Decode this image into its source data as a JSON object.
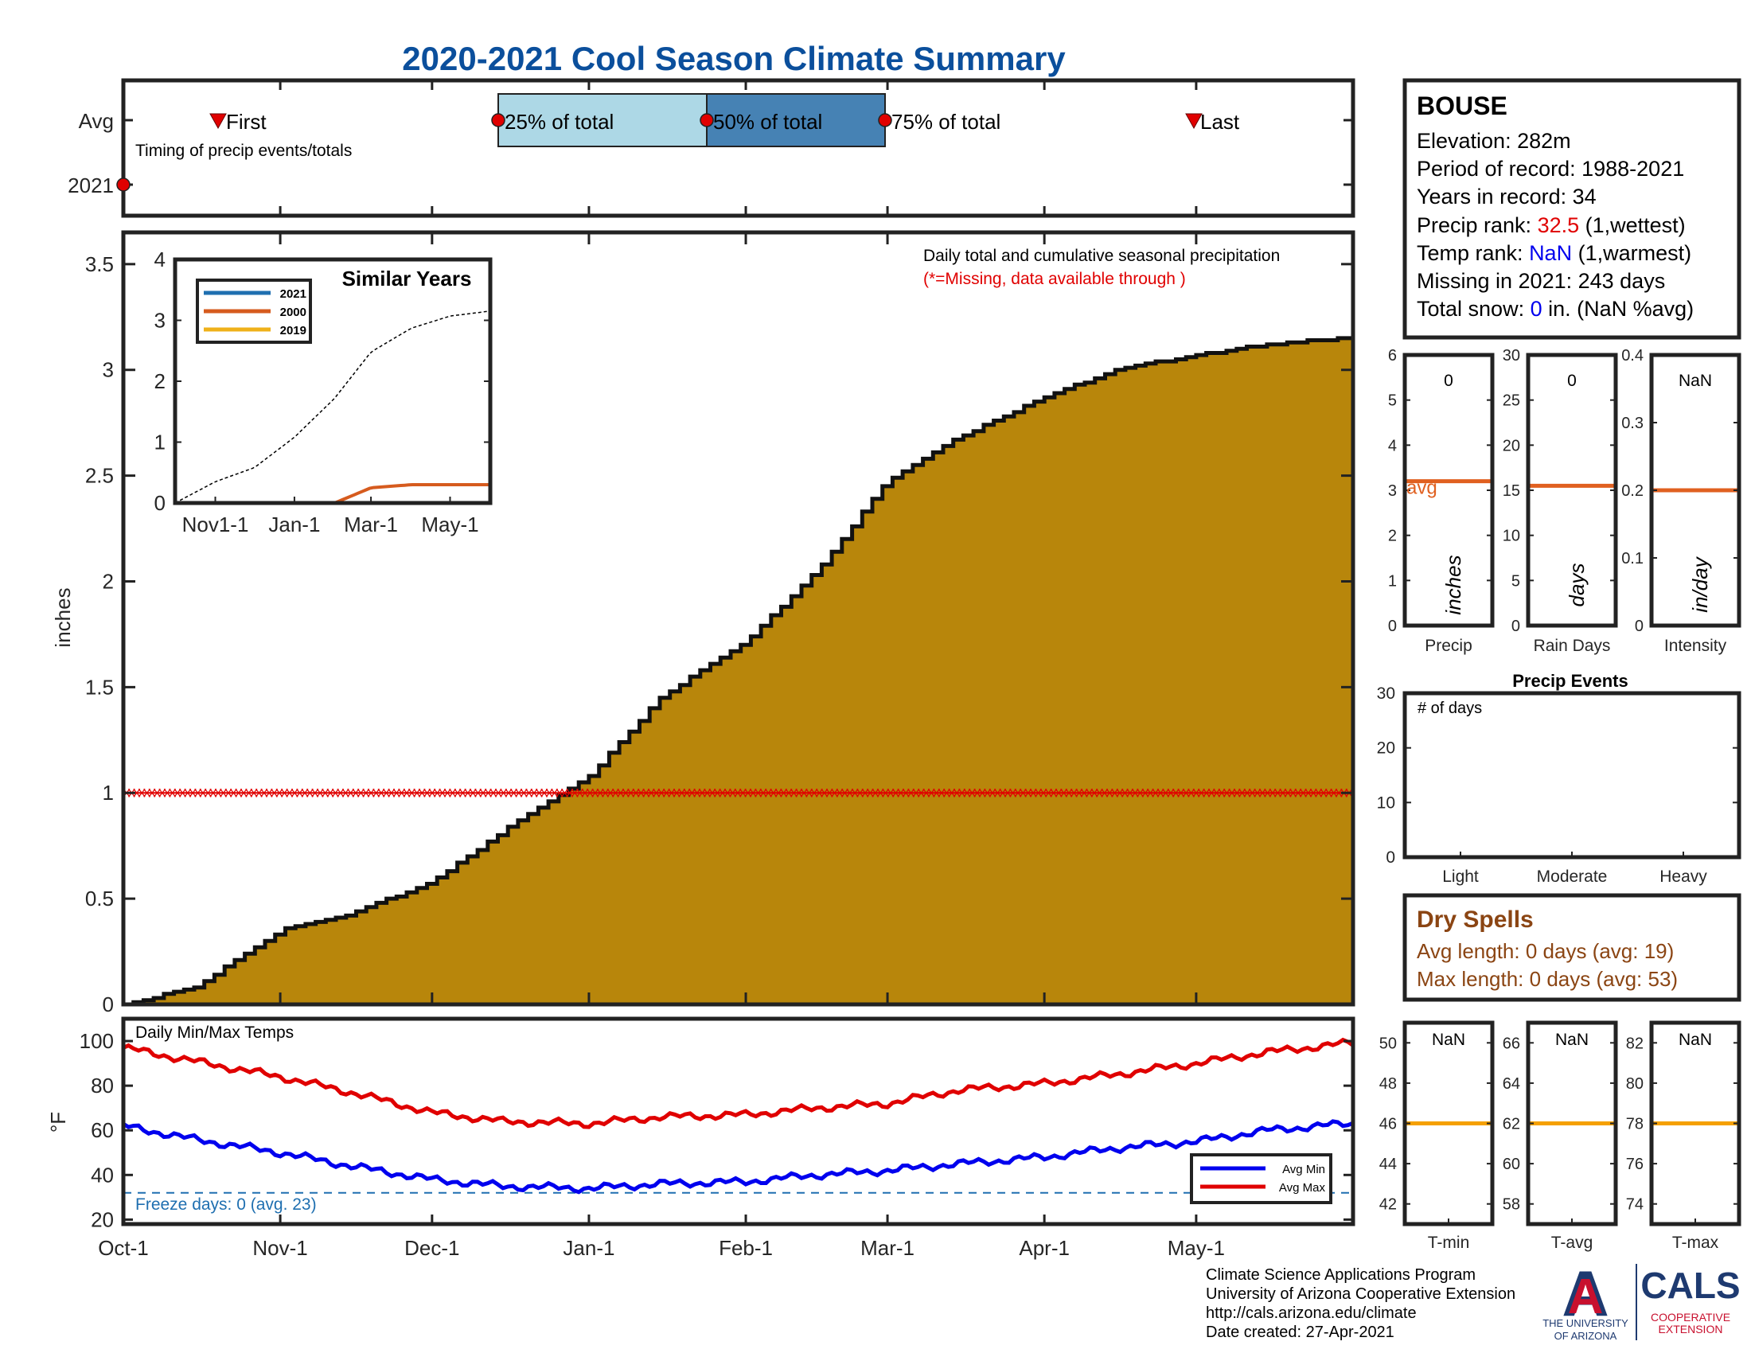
{
  "title": "2020-2021 Cool Season Climate Summary",
  "timing": {
    "ylabels": [
      "Avg",
      "2021"
    ],
    "first_label": "First",
    "last_label": "Last",
    "caption": "Timing of precip events/totals",
    "q25_label": "25% of total",
    "q50_label": "50% of total",
    "q75_label": "75% of total",
    "first_date": "Nov-1",
    "q25_date": "Dec-16",
    "q50_date": "Jan-25",
    "q75_date": "Mar-1",
    "last_date": "May-1",
    "year2021_marker_date": "Oct-1"
  },
  "station": {
    "name": "BOUSE",
    "elevation_label": "Elevation: 282m",
    "period_label": "Period of record: 1988-2021",
    "years_label": "Years in record: 34",
    "precip_rank_prefix": "Precip rank: ",
    "precip_rank_value": "32.5",
    "precip_rank_suffix": " (1,wettest)",
    "temp_rank_prefix": "Temp rank: ",
    "temp_rank_value": "NaN",
    "temp_rank_suffix": " (1,warmest)",
    "missing_label": "Missing in 2021: 243 days",
    "snow_prefix": "Total snow: ",
    "snow_value": "0",
    "snow_suffix": " in. (NaN %avg)"
  },
  "precip_main": {
    "ylabel": "inches",
    "yticks": [
      "0",
      "0.5",
      "1",
      "1.5",
      "2",
      "2.5",
      "3",
      "3.5"
    ],
    "note1": "Daily total and cumulative seasonal precipitation",
    "note2": "(*=Missing, data available through )",
    "missing_line_value": 1.0,
    "xticks": [
      "Oct-1",
      "Nov-1",
      "Dec-1",
      "Jan-1",
      "Feb-1",
      "Mar-1",
      "Apr-1",
      "May-1"
    ]
  },
  "similar": {
    "title": "Similar Years",
    "legend": [
      "2021",
      "2000",
      "2019"
    ],
    "yticks": [
      "0",
      "1",
      "2",
      "3",
      "4"
    ],
    "xticks": [
      "Nov1-1",
      "Jan-1",
      "Mar-1",
      "May-1"
    ]
  },
  "mini_precip": [
    {
      "value": "0",
      "unit": "inches",
      "xlabel": "Precip",
      "yticks": [
        "0",
        "1",
        "2",
        "3",
        "4",
        "5",
        "6"
      ],
      "avg_label": "avg"
    },
    {
      "value": "0",
      "unit": "days",
      "xlabel": "Rain Days",
      "yticks": [
        "0",
        "5",
        "10",
        "15",
        "20",
        "25",
        "30"
      ]
    },
    {
      "value": "NaN",
      "unit": "in/day",
      "xlabel": "Intensity",
      "yticks": [
        "0",
        "0.1",
        "0.2",
        "0.3",
        "0.4"
      ]
    }
  ],
  "events": {
    "title": "Precip Events",
    "ylabel": "# of days",
    "yticks": [
      "0",
      "10",
      "20",
      "30"
    ],
    "categories": [
      "Light",
      "Moderate",
      "Heavy"
    ]
  },
  "dry": {
    "title": "Dry Spells",
    "avg_label": "Avg length: 0 days (avg: 19)",
    "max_label": "Max length: 0 days (avg: 53)"
  },
  "temps": {
    "title": "Daily Min/Max Temps",
    "ylabel": "°F",
    "yticks": [
      "20",
      "40",
      "60",
      "80",
      "100"
    ],
    "freeze_label": "Freeze days: 0 (avg. 23)",
    "legend": [
      "Avg Min",
      "Avg Max"
    ]
  },
  "mini_temps": [
    {
      "value": "NaN",
      "xlabel": "T-min",
      "yticks": [
        "42",
        "44",
        "46",
        "48",
        "50"
      ]
    },
    {
      "value": "NaN",
      "xlabel": "T-avg",
      "yticks": [
        "58",
        "60",
        "62",
        "64",
        "66"
      ]
    },
    {
      "value": "NaN",
      "xlabel": "T-max",
      "yticks": [
        "74",
        "76",
        "78",
        "80",
        "82"
      ]
    }
  ],
  "footer": {
    "line1": "Climate Science Applications Program",
    "line2": "University of Arizona Cooperative Extension",
    "line3": "http://cals.arizona.edu/climate",
    "line4": " Date created: 27-Apr-2021"
  },
  "logos": {
    "ua_letter": "A",
    "ua_line1": "THE UNIVERSITY",
    "ua_line2": "OF ARIZONA",
    "cals_main": "CALS",
    "cals_line1": "COOPERATIVE",
    "cals_line2": "EXTENSION"
  },
  "colors": {
    "precip_fill": "#b8860b",
    "title_blue": "#0b4f9c",
    "q_light": "#add8e6",
    "q_dark": "#4682b4",
    "max_red": "#e00000",
    "min_blue": "#0000ee",
    "avg_orange": "#e06020",
    "temp_orange": "#f5a000",
    "dry_brown": "#8b4513",
    "ua_red": "#c8102e",
    "ua_blue": "#1e3a70"
  },
  "chart_data": [
    {
      "type": "area",
      "name": "Cumulative seasonal precipitation (avg)",
      "x": [
        "Oct-1",
        "Oct-15",
        "Nov-1",
        "Nov-15",
        "Dec-1",
        "Dec-15",
        "Jan-1",
        "Jan-15",
        "Feb-1",
        "Feb-15",
        "Mar-1",
        "Mar-15",
        "Apr-1",
        "Apr-15",
        "May-1",
        "May-15",
        "May-31"
      ],
      "values": [
        0.0,
        0.08,
        0.35,
        0.43,
        0.58,
        0.82,
        1.08,
        1.45,
        1.72,
        2.05,
        2.48,
        2.68,
        2.87,
        3.0,
        3.07,
        3.12,
        3.15
      ],
      "ylim": [
        0,
        3.65
      ],
      "ylabel": "inches"
    },
    {
      "type": "line",
      "name": "Similar Years",
      "x": [
        "Oct-1",
        "Nov-1",
        "Dec-1",
        "Jan-1",
        "Feb-1",
        "Mar-1",
        "Apr-1",
        "May-1",
        "May-31"
      ],
      "series": [
        {
          "values": [
            0,
            0.35,
            0.58,
            1.08,
            1.72,
            2.48,
            2.87,
            3.07,
            3.15
          ]
        },
        {
          "name": "2021",
          "values": [
            0,
            0,
            0,
            0,
            0,
            0,
            0,
            0,
            0
          ]
        },
        {
          "name": "2000",
          "values": [
            0,
            0,
            0,
            0,
            0,
            0.25,
            0.3,
            0.3,
            0.3
          ]
        },
        {
          "name": "2019",
          "values": [
            0,
            0,
            0,
            0,
            0,
            0,
            0,
            0,
            0
          ]
        }
      ],
      "ylim": [
        0,
        4
      ]
    },
    {
      "type": "line",
      "name": "Daily Min/Max Temps",
      "x": [
        "Oct-1",
        "Oct-15",
        "Nov-1",
        "Nov-15",
        "Dec-1",
        "Dec-15",
        "Jan-1",
        "Jan-15",
        "Feb-1",
        "Feb-15",
        "Mar-1",
        "Mar-15",
        "Apr-1",
        "Apr-15",
        "May-1",
        "May-15",
        "May-31"
      ],
      "series": [
        {
          "name": "Avg Max",
          "values": [
            97,
            91,
            84,
            77,
            68,
            64,
            63,
            66,
            67,
            70,
            72,
            78,
            81,
            85,
            90,
            95,
            99
          ]
        },
        {
          "name": "Avg Min",
          "values": [
            62,
            56,
            50,
            44,
            38,
            35,
            34,
            36,
            37,
            40,
            42,
            45,
            48,
            52,
            55,
            60,
            63
          ]
        }
      ],
      "ylim": [
        18,
        110
      ],
      "ylabel": "°F"
    }
  ]
}
